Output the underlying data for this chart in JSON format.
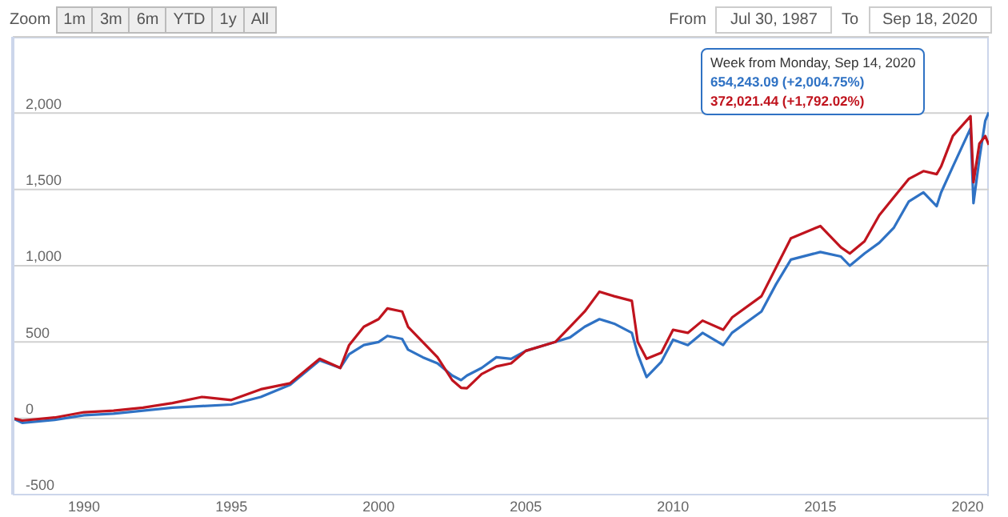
{
  "chart_data": {
    "type": "line",
    "x": [
      1987.58,
      1987.9,
      1989,
      1990,
      1991,
      1992,
      1993,
      1994,
      1995,
      1996,
      1997,
      1998,
      1998.7,
      1999,
      1999.5,
      2000,
      2000.3,
      2000.8,
      2001,
      2001.5,
      2002,
      2002.5,
      2002.8,
      2003,
      2003.5,
      2004,
      2004.5,
      2005,
      2006,
      2006.5,
      2007,
      2007.5,
      2008,
      2008.6,
      2008.8,
      2009.1,
      2009.6,
      2010,
      2010.5,
      2011,
      2011.7,
      2012,
      2013,
      2013.5,
      2014,
      2015,
      2015.7,
      2016,
      2016.5,
      2017,
      2017.5,
      2018,
      2018.5,
      2018.95,
      2019.1,
      2019.5,
      2020.1,
      2020.2,
      2020.4,
      2020.6,
      2020.72
    ],
    "series": [
      {
        "color": "#2f72c4",
        "values": [
          0,
          -30,
          -10,
          20,
          30,
          50,
          70,
          80,
          90,
          140,
          220,
          380,
          330,
          420,
          480,
          500,
          540,
          520,
          450,
          400,
          360,
          280,
          250,
          280,
          330,
          400,
          390,
          442,
          500,
          530,
          600,
          650,
          620,
          560,
          420,
          270,
          370,
          515,
          480,
          560,
          480,
          560,
          700,
          880,
          1040,
          1090,
          1060,
          1000,
          1080,
          1150,
          1250,
          1420,
          1480,
          1390,
          1480,
          1650,
          1900,
          1410,
          1700,
          1950,
          2004.75
        ]
      },
      {
        "color": "#c0141e",
        "values": [
          0,
          -15,
          5,
          40,
          50,
          70,
          100,
          140,
          120,
          190,
          230,
          390,
          330,
          480,
          600,
          650,
          720,
          700,
          600,
          500,
          400,
          250,
          200,
          197,
          290,
          340,
          360,
          442,
          500,
          600,
          700,
          830,
          800,
          770,
          500,
          390,
          430,
          580,
          560,
          640,
          580,
          660,
          800,
          990,
          1180,
          1260,
          1120,
          1080,
          1160,
          1330,
          1450,
          1568,
          1620,
          1600,
          1650,
          1850,
          1980,
          1547,
          1800,
          1850,
          1792.02
        ]
      }
    ],
    "xlim": [
      1987.58,
      2020.72
    ],
    "xticks": [
      1990,
      1995,
      2000,
      2005,
      2010,
      2015,
      2020
    ],
    "ylim": [
      -500,
      2500
    ],
    "yticks": [
      {
        "value": -500,
        "label": "-500"
      },
      {
        "value": 0,
        "label": "0"
      },
      {
        "value": 500,
        "label": "500"
      },
      {
        "value": 1000,
        "label": "1,000"
      },
      {
        "value": 1500,
        "label": "1,500"
      },
      {
        "value": 2000,
        "label": "2,000"
      }
    ],
    "grid": "y",
    "legend": false,
    "annotations": [
      "Zoom",
      "1m",
      "3m",
      "6m",
      "YTD",
      "1y",
      "All",
      "From",
      "Jul 30, 1987",
      "To",
      "Sep 18, 2020",
      "Week from Monday, Sep 14, 2020",
      "654,243.09 (+2,004.75%)",
      "372,021.44 (+1,792.02%)"
    ]
  }
}
